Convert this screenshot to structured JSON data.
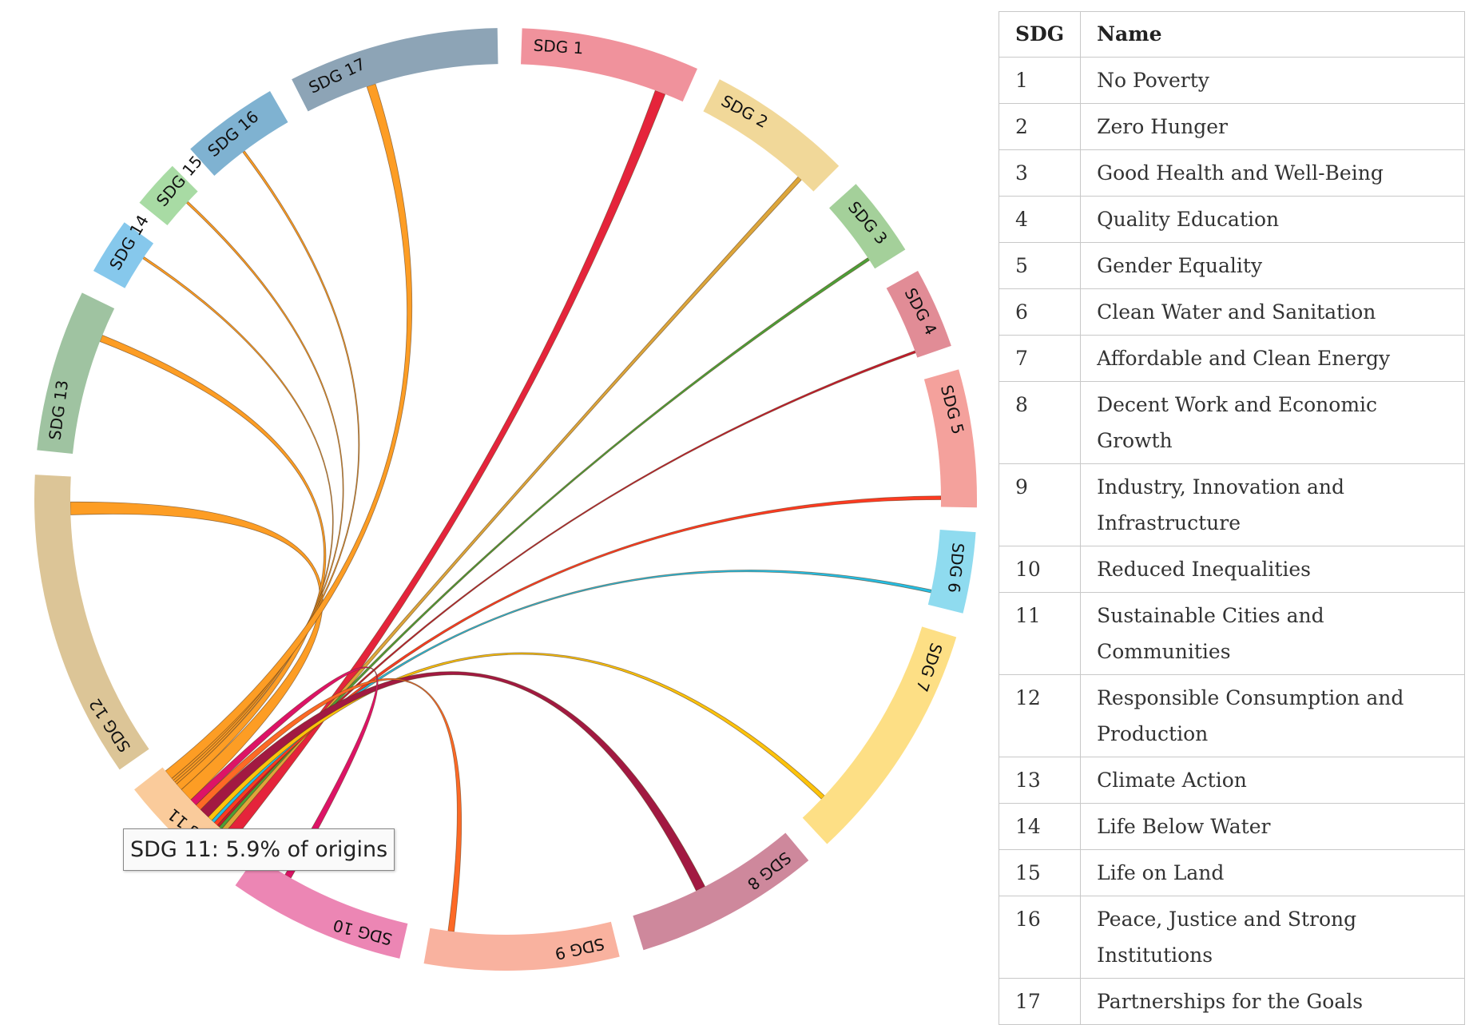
{
  "tooltip": "SDG 11: 5.9% of origins",
  "table": {
    "headers": [
      "SDG",
      "Name"
    ],
    "rows": [
      {
        "num": "1",
        "name": "No Poverty"
      },
      {
        "num": "2",
        "name": "Zero Hunger"
      },
      {
        "num": "3",
        "name": "Good Health and Well-Being"
      },
      {
        "num": "4",
        "name": "Quality Education"
      },
      {
        "num": "5",
        "name": "Gender Equality"
      },
      {
        "num": "6",
        "name": "Clean Water and Sanitation"
      },
      {
        "num": "7",
        "name": "Affordable and Clean Energy"
      },
      {
        "num": "8",
        "name": "Decent Work and Economic Growth"
      },
      {
        "num": "9",
        "name": "Industry, Innovation and Infrastructure"
      },
      {
        "num": "10",
        "name": "Reduced Inequalities"
      },
      {
        "num": "11",
        "name": "Sustainable Cities and Communities"
      },
      {
        "num": "12",
        "name": "Responsible Consumption and Production"
      },
      {
        "num": "13",
        "name": "Climate Action"
      },
      {
        "num": "14",
        "name": "Life Below Water"
      },
      {
        "num": "15",
        "name": "Life on Land"
      },
      {
        "num": "16",
        "name": "Peace, Justice and Strong Institutions"
      },
      {
        "num": "17",
        "name": "Partnerships for the Goals"
      }
    ]
  },
  "chord": {
    "highlighted": "SDG 11",
    "groups": [
      {
        "label": "SDG 1",
        "color": "#f0929c"
      },
      {
        "label": "SDG 2",
        "color": "#f1d899"
      },
      {
        "label": "SDG 3",
        "color": "#a4d09a"
      },
      {
        "label": "SDG 4",
        "color": "#e18c96"
      },
      {
        "label": "SDG 5",
        "color": "#f4a19c"
      },
      {
        "label": "SDG 6",
        "color": "#8fdbef"
      },
      {
        "label": "SDG 7",
        "color": "#fddf85"
      },
      {
        "label": "SDG 8",
        "color": "#ce889c"
      },
      {
        "label": "SDG 9",
        "color": "#f9b29f"
      },
      {
        "label": "SDG 10",
        "color": "#ec86b4"
      },
      {
        "label": "SDG 11",
        "color": "#facb9b"
      },
      {
        "label": "SDG 12",
        "color": "#dcc597"
      },
      {
        "label": "SDG 13",
        "color": "#9fc3a1"
      },
      {
        "label": "SDG 14",
        "color": "#86c8ec"
      },
      {
        "label": "SDG 15",
        "color": "#a8dba4"
      },
      {
        "label": "SDG 16",
        "color": "#7fb2d1"
      },
      {
        "label": "SDG 17",
        "color": "#8da4b6"
      }
    ],
    "ribbons": [
      {
        "target": "SDG 1",
        "color": "#e5243b"
      },
      {
        "target": "SDG 2",
        "color": "#dda63a"
      },
      {
        "target": "SDG 3",
        "color": "#4c9f38"
      },
      {
        "target": "SDG 4",
        "color": "#c5192d"
      },
      {
        "target": "SDG 5",
        "color": "#ff3a21"
      },
      {
        "target": "SDG 6",
        "color": "#26bde2"
      },
      {
        "target": "SDG 7",
        "color": "#fcc30b"
      },
      {
        "target": "SDG 8",
        "color": "#a21942"
      },
      {
        "target": "SDG 9",
        "color": "#fd6925"
      },
      {
        "target": "SDG 10",
        "color": "#dd1367"
      },
      {
        "target": "SDG 12",
        "color": "#fd9d24"
      },
      {
        "target": "SDG 13",
        "color": "#fd9d24"
      },
      {
        "target": "SDG 14",
        "color": "#fd9d24"
      },
      {
        "target": "SDG 15",
        "color": "#fd9d24"
      },
      {
        "target": "SDG 16",
        "color": "#fd9d24"
      },
      {
        "target": "SDG 17",
        "color": "#fd9d24"
      }
    ]
  }
}
